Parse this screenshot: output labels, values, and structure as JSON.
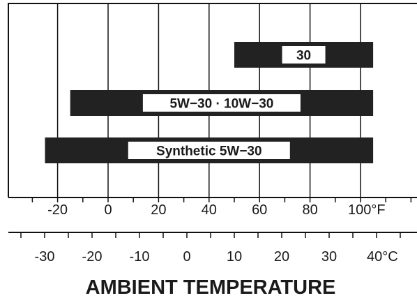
{
  "chart_data": {
    "type": "bar",
    "orientation": "horizontal",
    "title": "",
    "xlabel": "AMBIENT TEMPERATURE",
    "ylabel": "",
    "x_range_f": [
      -40,
      120
    ],
    "grid": true,
    "fahrenheit_ticks": [
      "-20",
      "0",
      "20",
      "40",
      "60",
      "80",
      "100°F"
    ],
    "fahrenheit_tick_values": [
      -20,
      0,
      20,
      40,
      60,
      80,
      100
    ],
    "celsius_ticks": [
      "-30",
      "-20",
      "-10",
      "0",
      "10",
      "20",
      "30",
      "40°C"
    ],
    "celsius_tick_values": [
      -30,
      -20,
      -10,
      0,
      10,
      20,
      30,
      40
    ],
    "series": [
      {
        "label": "30",
        "range_f": [
          50,
          105
        ]
      },
      {
        "label": "5W−30 · 10W−30",
        "range_f": [
          -15,
          105
        ]
      },
      {
        "label": "Synthetic 5W−30",
        "range_f": [
          -25,
          105
        ]
      }
    ],
    "colors": {
      "bar": "#222222",
      "label_box": "#ffffff",
      "text": "#1a1a1a"
    }
  }
}
